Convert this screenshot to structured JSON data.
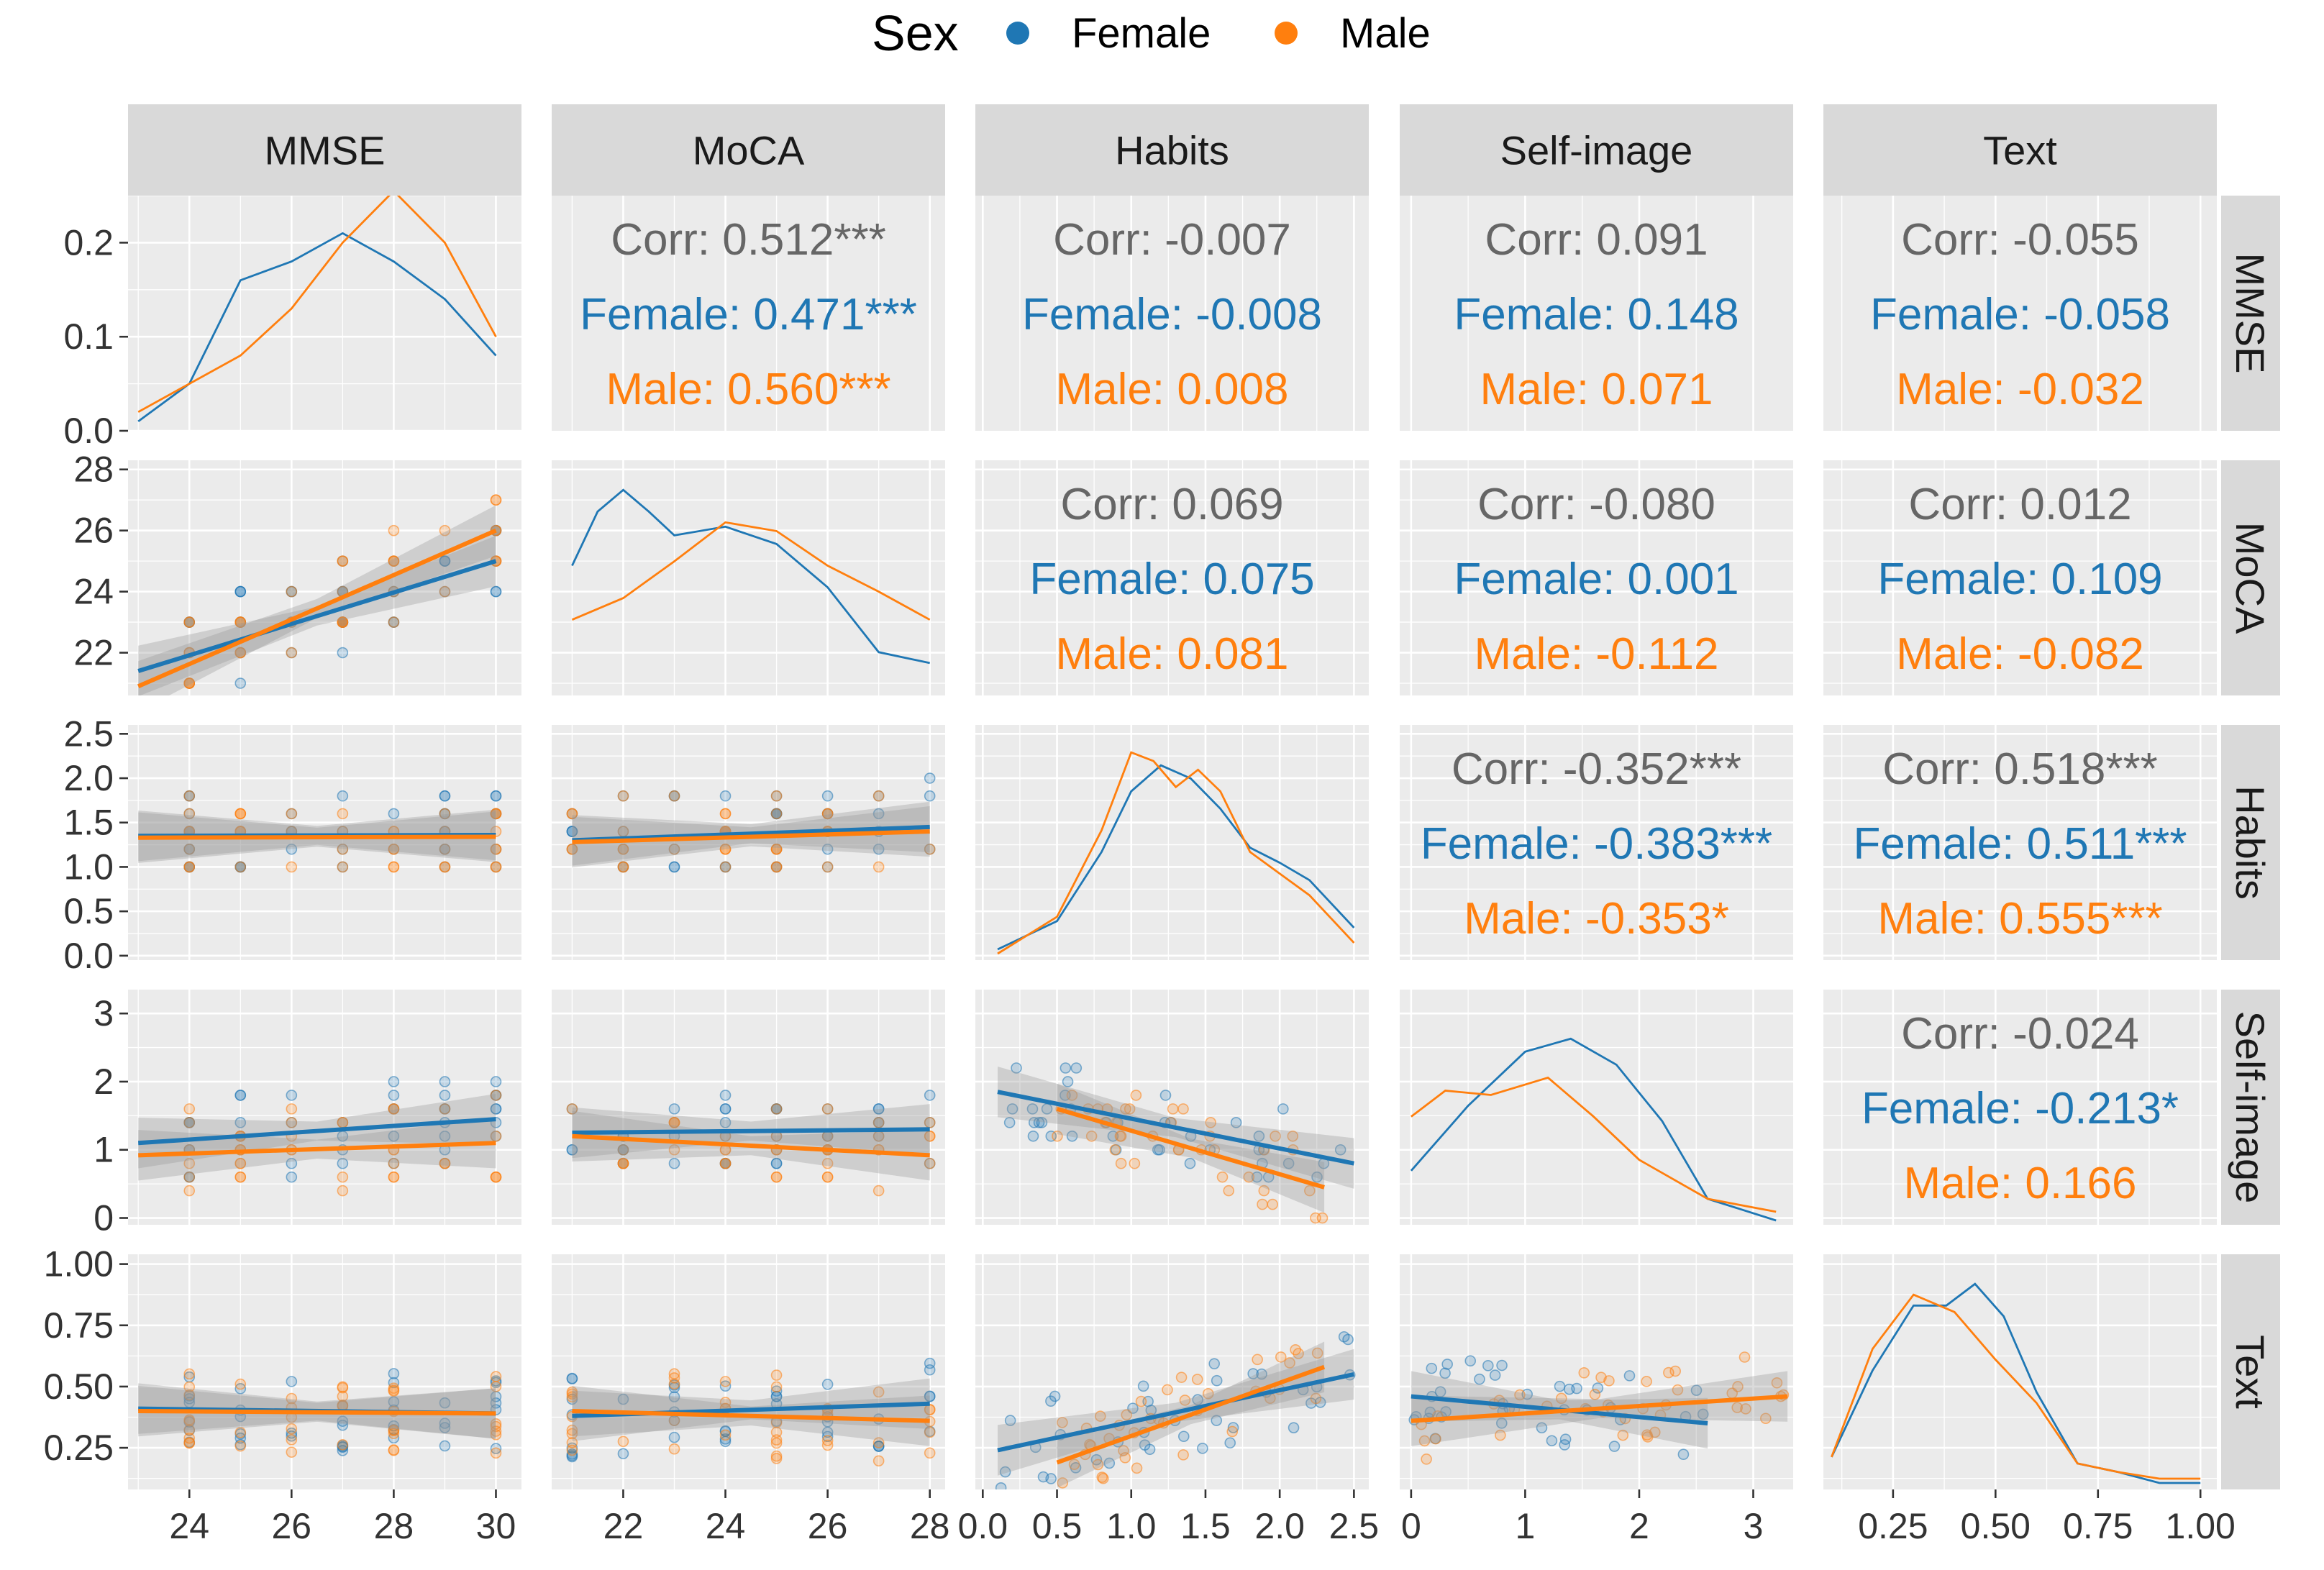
{
  "colors": {
    "female": "#1f77b4",
    "male": "#ff7f0e",
    "corr_overall": "#666666"
  },
  "legend": {
    "title": "Sex",
    "entries": [
      {
        "label": "Female",
        "color": "#1f77b4"
      },
      {
        "label": "Male",
        "color": "#ff7f0e"
      }
    ]
  },
  "chart_data": {
    "type": "scatter-matrix",
    "variables": [
      "MMSE",
      "MoCA",
      "Habits",
      "Self-image",
      "Text"
    ],
    "groups": [
      "Female",
      "Male"
    ],
    "axis_ranges": {
      "MMSE": [
        22.8,
        30.5
      ],
      "MoCA": [
        20.6,
        28.3
      ],
      "Habits": [
        -0.05,
        2.6
      ],
      "Self-image": [
        -0.1,
        3.35
      ],
      "Text": [
        0.08,
        1.04
      ]
    },
    "x_ticks": {
      "MMSE": [
        "24",
        "26",
        "28",
        "30"
      ],
      "MoCA": [
        "22",
        "24",
        "26",
        "28"
      ],
      "Habits": [
        "0.0",
        "0.5",
        "1.0",
        "1.5",
        "2.0",
        "2.5"
      ],
      "Self-image": [
        "0",
        "1",
        "2",
        "3"
      ],
      "Text": [
        "0.25",
        "0.50",
        "0.75",
        "1.00"
      ]
    },
    "y_ticks": {
      "MMSE": [
        "0.0",
        "0.1",
        "0.2"
      ],
      "MoCA": [
        "22",
        "24",
        "26",
        "28"
      ],
      "Habits": [
        "0.0",
        "0.5",
        "1.0",
        "1.5",
        "2.0",
        "2.5"
      ],
      "Self-image": [
        "0",
        "1",
        "2",
        "3"
      ],
      "Text": [
        "0.25",
        "0.50",
        "0.75",
        "1.00"
      ]
    },
    "mmse_density_range": [
      0,
      0.25
    ],
    "correlations": [
      {
        "row": "MMSE",
        "col": "MoCA",
        "corr": "Corr: 0.512***",
        "female": "Female: 0.471***",
        "male": "Male: 0.560***"
      },
      {
        "row": "MMSE",
        "col": "Habits",
        "corr": "Corr: -0.007",
        "female": "Female: -0.008",
        "male": "Male: 0.008"
      },
      {
        "row": "MMSE",
        "col": "Self-image",
        "corr": "Corr: 0.091",
        "female": "Female: 0.148",
        "male": "Male: 0.071"
      },
      {
        "row": "MMSE",
        "col": "Text",
        "corr": "Corr: -0.055",
        "female": "Female: -0.058",
        "male": "Male: -0.032"
      },
      {
        "row": "MoCA",
        "col": "Habits",
        "corr": "Corr: 0.069",
        "female": "Female: 0.075",
        "male": "Male: 0.081"
      },
      {
        "row": "MoCA",
        "col": "Self-image",
        "corr": "Corr: -0.080",
        "female": "Female: 0.001",
        "male": "Male: -0.112"
      },
      {
        "row": "MoCA",
        "col": "Text",
        "corr": "Corr: 0.012",
        "female": "Female: 0.109",
        "male": "Male: -0.082"
      },
      {
        "row": "Habits",
        "col": "Self-image",
        "corr": "Corr: -0.352***",
        "female": "Female: -0.383***",
        "male": "Male: -0.353*"
      },
      {
        "row": "Habits",
        "col": "Text",
        "corr": "Corr: 0.518***",
        "female": "Female: 0.511***",
        "male": "Male: 0.555***"
      },
      {
        "row": "Self-image",
        "col": "Text",
        "corr": "Corr: -0.024",
        "female": "Female: -0.213*",
        "male": "Male: 0.166"
      }
    ],
    "densities": {
      "MMSE": {
        "Female": [
          [
            23,
            0.01
          ],
          [
            24,
            0.05
          ],
          [
            25,
            0.16
          ],
          [
            26,
            0.18
          ],
          [
            27,
            0.21
          ],
          [
            28,
            0.18
          ],
          [
            29,
            0.14
          ],
          [
            30,
            0.08
          ]
        ],
        "Male": [
          [
            23,
            0.02
          ],
          [
            24,
            0.05
          ],
          [
            25,
            0.08
          ],
          [
            26,
            0.13
          ],
          [
            27,
            0.2
          ],
          [
            28,
            0.255
          ],
          [
            29,
            0.2
          ],
          [
            30,
            0.1
          ]
        ]
      },
      "MoCA": {
        "Female": [
          [
            21,
            0.6
          ],
          [
            21.5,
            0.85
          ],
          [
            22,
            0.95
          ],
          [
            22.5,
            0.85
          ],
          [
            23,
            0.74
          ],
          [
            24,
            0.78
          ],
          [
            25,
            0.7
          ],
          [
            26,
            0.5
          ],
          [
            27,
            0.2
          ],
          [
            28,
            0.15
          ]
        ],
        "Male": [
          [
            21,
            0.35
          ],
          [
            22,
            0.45
          ],
          [
            23,
            0.62
          ],
          [
            24,
            0.8
          ],
          [
            25,
            0.76
          ],
          [
            26,
            0.6
          ],
          [
            27,
            0.48
          ],
          [
            28,
            0.35
          ]
        ]
      },
      "Habits": {
        "Female": [
          [
            0.1,
            0.05
          ],
          [
            0.5,
            0.18
          ],
          [
            0.8,
            0.5
          ],
          [
            1.0,
            0.78
          ],
          [
            1.2,
            0.9
          ],
          [
            1.4,
            0.84
          ],
          [
            1.6,
            0.7
          ],
          [
            1.8,
            0.52
          ],
          [
            2.0,
            0.45
          ],
          [
            2.2,
            0.37
          ],
          [
            2.5,
            0.15
          ]
        ],
        "Male": [
          [
            0.1,
            0.03
          ],
          [
            0.5,
            0.2
          ],
          [
            0.8,
            0.6
          ],
          [
            1.0,
            0.96
          ],
          [
            1.15,
            0.92
          ],
          [
            1.3,
            0.8
          ],
          [
            1.45,
            0.88
          ],
          [
            1.6,
            0.78
          ],
          [
            1.8,
            0.5
          ],
          [
            2.0,
            0.4
          ],
          [
            2.2,
            0.3
          ],
          [
            2.5,
            0.08
          ]
        ]
      },
      "Self-image": {
        "Female": [
          [
            0,
            0.25
          ],
          [
            0.5,
            0.55
          ],
          [
            1.0,
            0.8
          ],
          [
            1.4,
            0.86
          ],
          [
            1.8,
            0.74
          ],
          [
            2.2,
            0.48
          ],
          [
            2.6,
            0.12
          ],
          [
            3.2,
            0.02
          ]
        ],
        "Male": [
          [
            0,
            0.5
          ],
          [
            0.3,
            0.62
          ],
          [
            0.7,
            0.6
          ],
          [
            1.2,
            0.68
          ],
          [
            1.6,
            0.5
          ],
          [
            2.0,
            0.3
          ],
          [
            2.6,
            0.12
          ],
          [
            3.2,
            0.06
          ]
        ]
      },
      "Text": {
        "Female": [
          [
            0.1,
            0.15
          ],
          [
            0.2,
            0.55
          ],
          [
            0.3,
            0.85
          ],
          [
            0.38,
            0.85
          ],
          [
            0.45,
            0.95
          ],
          [
            0.52,
            0.8
          ],
          [
            0.6,
            0.45
          ],
          [
            0.7,
            0.12
          ],
          [
            0.8,
            0.08
          ],
          [
            0.9,
            0.03
          ],
          [
            1.0,
            0.03
          ]
        ],
        "Male": [
          [
            0.1,
            0.15
          ],
          [
            0.2,
            0.65
          ],
          [
            0.3,
            0.9
          ],
          [
            0.4,
            0.82
          ],
          [
            0.5,
            0.6
          ],
          [
            0.6,
            0.4
          ],
          [
            0.7,
            0.12
          ],
          [
            0.8,
            0.08
          ],
          [
            0.9,
            0.05
          ],
          [
            1.0,
            0.05
          ]
        ]
      }
    },
    "regression_lines": {
      "MoCA~MMSE": {
        "Female": [
          [
            23,
            21.4
          ],
          [
            30,
            25.0
          ]
        ],
        "Male": [
          [
            23,
            20.9
          ],
          [
            30,
            26.0
          ]
        ]
      },
      "Habits~MMSE": {
        "Female": [
          [
            23,
            1.35
          ],
          [
            30,
            1.36
          ]
        ],
        "Male": [
          [
            23,
            1.33
          ],
          [
            30,
            1.34
          ]
        ]
      },
      "Habits~MoCA": {
        "Female": [
          [
            21,
            1.3
          ],
          [
            28,
            1.45
          ]
        ],
        "Male": [
          [
            21,
            1.28
          ],
          [
            28,
            1.4
          ]
        ]
      },
      "Self-image~MMSE": {
        "Female": [
          [
            23,
            1.1
          ],
          [
            30,
            1.45
          ]
        ],
        "Male": [
          [
            23,
            0.92
          ],
          [
            30,
            1.1
          ]
        ]
      },
      "Self-image~MoCA": {
        "Female": [
          [
            21,
            1.25
          ],
          [
            28,
            1.3
          ]
        ],
        "Male": [
          [
            21,
            1.2
          ],
          [
            28,
            0.92
          ]
        ]
      },
      "Self-image~Habits": {
        "Female": [
          [
            0.1,
            1.85
          ],
          [
            2.5,
            0.8
          ]
        ],
        "Male": [
          [
            0.5,
            1.6
          ],
          [
            2.3,
            0.45
          ]
        ]
      },
      "Text~MMSE": {
        "Female": [
          [
            23,
            0.41
          ],
          [
            30,
            0.39
          ]
        ],
        "Male": [
          [
            23,
            0.4
          ],
          [
            30,
            0.39
          ]
        ]
      },
      "Text~MoCA": {
        "Female": [
          [
            21,
            0.38
          ],
          [
            28,
            0.43
          ]
        ],
        "Male": [
          [
            21,
            0.4
          ],
          [
            28,
            0.36
          ]
        ]
      },
      "Text~Habits": {
        "Female": [
          [
            0.1,
            0.24
          ],
          [
            2.5,
            0.55
          ]
        ],
        "Male": [
          [
            0.5,
            0.19
          ],
          [
            2.3,
            0.58
          ]
        ]
      },
      "Text~Self-image": {
        "Female": [
          [
            0,
            0.46
          ],
          [
            2.6,
            0.35
          ]
        ],
        "Male": [
          [
            0,
            0.36
          ],
          [
            3.3,
            0.46
          ]
        ]
      }
    },
    "scatter_counts": {
      "per_panel": 80
    }
  }
}
